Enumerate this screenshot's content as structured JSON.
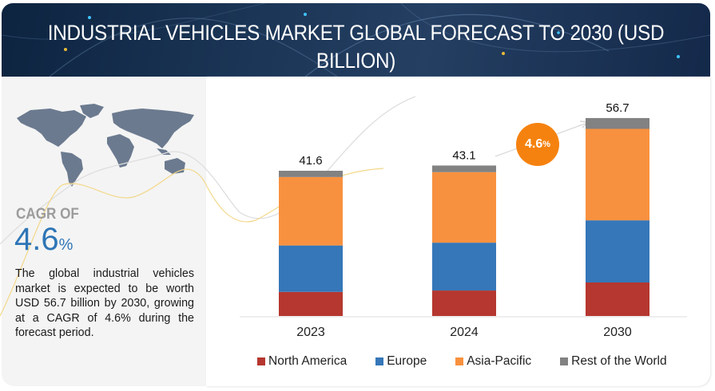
{
  "header": {
    "title_line1": "INDUSTRIAL VEHICLES MARKET GLOBAL FORECAST TO 2030 (USD",
    "title_line2": "BILLION)"
  },
  "sidebar": {
    "map_icon": "world-map-icon",
    "cagr_label": "CAGR OF",
    "cagr_value": "4.6",
    "cagr_unit": "%",
    "description": "The global industrial vehicles market is expected to be worth USD 56.7 billion by 2030, growing at a CAGR of 4.6% during the forecast period."
  },
  "cagr_badge": {
    "value": "4.6",
    "unit": "%"
  },
  "colors": {
    "north_america": "#b5372f",
    "europe": "#3577b8",
    "asia_pacific": "#f8913f",
    "rest_of_world": "#828282",
    "badge": "#f5820f",
    "accent_blue": "#2e75b6"
  },
  "chart_data": {
    "type": "bar",
    "stacked": true,
    "title": "INDUSTRIAL VEHICLES MARKET GLOBAL FORECAST TO 2030 (USD BILLION)",
    "xlabel": "",
    "ylabel": "",
    "categories": [
      "2023",
      "2024",
      "2030"
    ],
    "totals": [
      "41.6",
      "43.1",
      "56.7"
    ],
    "series": [
      {
        "name": "North America",
        "color": "#b5372f",
        "values": [
          6.9,
          7.3,
          9.6
        ]
      },
      {
        "name": "Europe",
        "color": "#3577b8",
        "values": [
          13.3,
          13.7,
          17.8
        ]
      },
      {
        "name": "Asia-Pacific",
        "color": "#f8913f",
        "values": [
          19.6,
          20.2,
          26.2
        ]
      },
      {
        "name": "Rest of the World",
        "color": "#828282",
        "values": [
          1.8,
          1.9,
          3.1
        ]
      }
    ],
    "ylim": [
      0,
      60
    ],
    "grid": false,
    "legend_position": "bottom",
    "annotations": [
      "4.6%"
    ]
  }
}
